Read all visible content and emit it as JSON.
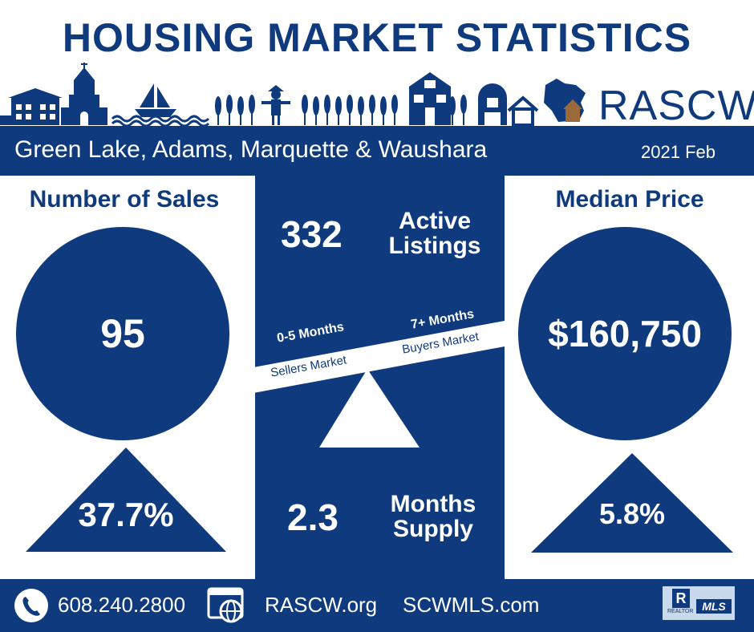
{
  "title": "HOUSING MARKET STATISTICS",
  "logo_text": "RASCW",
  "region": "Green Lake, Adams, Marquette & Waushara",
  "period": "2021 Feb",
  "sales": {
    "heading": "Number of Sales",
    "value": "95",
    "change": "37.7%"
  },
  "price": {
    "heading": "Median Price",
    "value": "$160,750",
    "change": "5.8%"
  },
  "listings": {
    "value": "332",
    "label_line1": "Active",
    "label_line2": "Listings"
  },
  "seesaw": {
    "left_top": "0-5 Months",
    "left_bottom": "Sellers Market",
    "right_top": "7+ Months",
    "right_bottom": "Buyers Market"
  },
  "supply": {
    "value": "2.3",
    "label_line1": "Months",
    "label_line2": "Supply"
  },
  "footer": {
    "phone": "608.240.2800",
    "site1": "RASCW.org",
    "site2": "SCWMLS.com",
    "badge_r": "R",
    "badge_realtor": "REALTOR",
    "badge_mls": "MLS"
  },
  "colors": {
    "navy": "#0f3b7e",
    "white": "#ffffff",
    "logo_house_roof": "#9a6a3a"
  }
}
